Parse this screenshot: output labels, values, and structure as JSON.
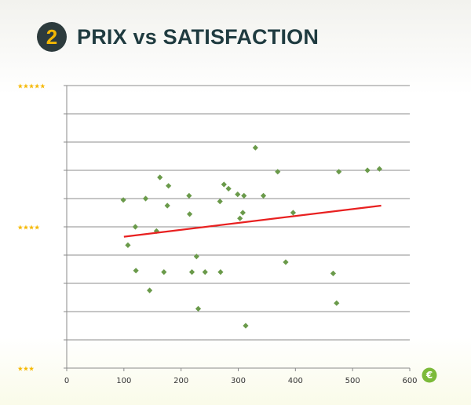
{
  "header": {
    "number": "2",
    "title": "PRIX vs SATISFACTION"
  },
  "currency_symbol": "€",
  "colors": {
    "points": "#6a9a4a",
    "trendline": "#e82020",
    "stars": "#f5b800",
    "badge": "#2d3b3d",
    "euro_badge": "#7cba3a"
  },
  "chart_data": {
    "type": "scatter",
    "title": "PRIX vs SATISFACTION",
    "xlabel": "",
    "ylabel": "",
    "xlim": [
      0,
      600
    ],
    "ylim": [
      3,
      5
    ],
    "x_ticks": [
      "0",
      "100",
      "200",
      "300",
      "400",
      "500",
      "600"
    ],
    "y_labels": [
      {
        "value": 5,
        "stars": "★★★★★"
      },
      {
        "value": 4,
        "stars": "★★★★"
      },
      {
        "value": 3,
        "stars": "★★★"
      }
    ],
    "grid": true,
    "series": [
      {
        "points": [
          [
            99,
            4.19
          ],
          [
            107,
            3.87
          ],
          [
            120,
            4.0
          ],
          [
            121,
            3.69
          ],
          [
            138,
            4.2
          ],
          [
            145,
            3.55
          ],
          [
            157,
            3.97
          ],
          [
            163,
            4.35
          ],
          [
            170,
            3.68
          ],
          [
            176,
            4.15
          ],
          [
            178,
            4.29
          ],
          [
            214,
            4.22
          ],
          [
            215,
            4.09
          ],
          [
            219,
            3.68
          ],
          [
            227,
            3.79
          ],
          [
            230,
            3.42
          ],
          [
            242,
            3.68
          ],
          [
            268,
            4.18
          ],
          [
            269,
            3.68
          ],
          [
            275,
            4.3
          ],
          [
            283,
            4.27
          ],
          [
            299,
            4.23
          ],
          [
            303,
            4.06
          ],
          [
            308,
            4.1
          ],
          [
            310,
            4.22
          ],
          [
            313,
            3.3
          ],
          [
            330,
            4.56
          ],
          [
            344,
            4.22
          ],
          [
            369,
            4.39
          ],
          [
            383,
            3.75
          ],
          [
            396,
            4.1
          ],
          [
            466,
            3.67
          ],
          [
            472,
            3.46
          ],
          [
            476,
            4.39
          ],
          [
            526,
            4.4
          ],
          [
            547,
            4.41
          ]
        ]
      }
    ],
    "trendline": {
      "x": [
        100,
        550
      ],
      "y": [
        3.93,
        4.15
      ]
    }
  }
}
